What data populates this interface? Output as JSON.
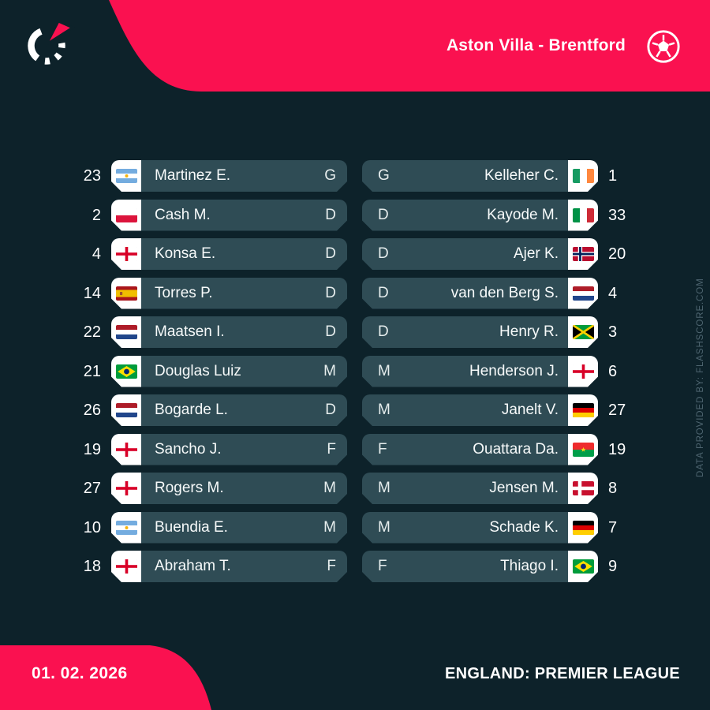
{
  "header": {
    "title": "Aston Villa - Brentford"
  },
  "footer": {
    "date": "01. 02. 2026",
    "league": "ENGLAND: PREMIER LEAGUE"
  },
  "watermark": "DATA PROVIDED BY: FLASHSCORE.COM",
  "colors": {
    "background": "#0d222a",
    "row_background": "#2f4c55",
    "accent_pink": "#fa1150",
    "flag_tab": "#ffffff",
    "text": "#f7fafa",
    "watermark_text": "#4e6570"
  },
  "lineups": {
    "home": {
      "players": [
        {
          "number": "23",
          "country": "argentina",
          "name": "Martinez E.",
          "position": "G"
        },
        {
          "number": "2",
          "country": "poland",
          "name": "Cash M.",
          "position": "D"
        },
        {
          "number": "4",
          "country": "england",
          "name": "Konsa E.",
          "position": "D"
        },
        {
          "number": "14",
          "country": "spain",
          "name": "Torres P.",
          "position": "D"
        },
        {
          "number": "22",
          "country": "netherlands",
          "name": "Maatsen I.",
          "position": "D"
        },
        {
          "number": "21",
          "country": "brazil",
          "name": "Douglas Luiz",
          "position": "M"
        },
        {
          "number": "26",
          "country": "netherlands",
          "name": "Bogarde L.",
          "position": "D"
        },
        {
          "number": "19",
          "country": "england",
          "name": "Sancho J.",
          "position": "F"
        },
        {
          "number": "27",
          "country": "england",
          "name": "Rogers M.",
          "position": "M"
        },
        {
          "number": "10",
          "country": "argentina",
          "name": "Buendia E.",
          "position": "M"
        },
        {
          "number": "18",
          "country": "england",
          "name": "Abraham T.",
          "position": "F"
        }
      ]
    },
    "away": {
      "players": [
        {
          "number": "1",
          "country": "ireland",
          "name": "Kelleher C.",
          "position": "G"
        },
        {
          "number": "33",
          "country": "italy",
          "name": "Kayode M.",
          "position": "D"
        },
        {
          "number": "20",
          "country": "norway",
          "name": "Ajer K.",
          "position": "D"
        },
        {
          "number": "4",
          "country": "netherlands",
          "name": "van den Berg S.",
          "position": "D"
        },
        {
          "number": "3",
          "country": "jamaica",
          "name": "Henry R.",
          "position": "D"
        },
        {
          "number": "6",
          "country": "england",
          "name": "Henderson J.",
          "position": "M"
        },
        {
          "number": "27",
          "country": "germany",
          "name": "Janelt V.",
          "position": "M"
        },
        {
          "number": "19",
          "country": "burkina-faso",
          "name": "Ouattara Da.",
          "position": "F"
        },
        {
          "number": "8",
          "country": "denmark",
          "name": "Jensen M.",
          "position": "M"
        },
        {
          "number": "7",
          "country": "germany",
          "name": "Schade K.",
          "position": "M"
        },
        {
          "number": "9",
          "country": "brazil",
          "name": "Thiago I.",
          "position": "F"
        }
      ]
    }
  }
}
